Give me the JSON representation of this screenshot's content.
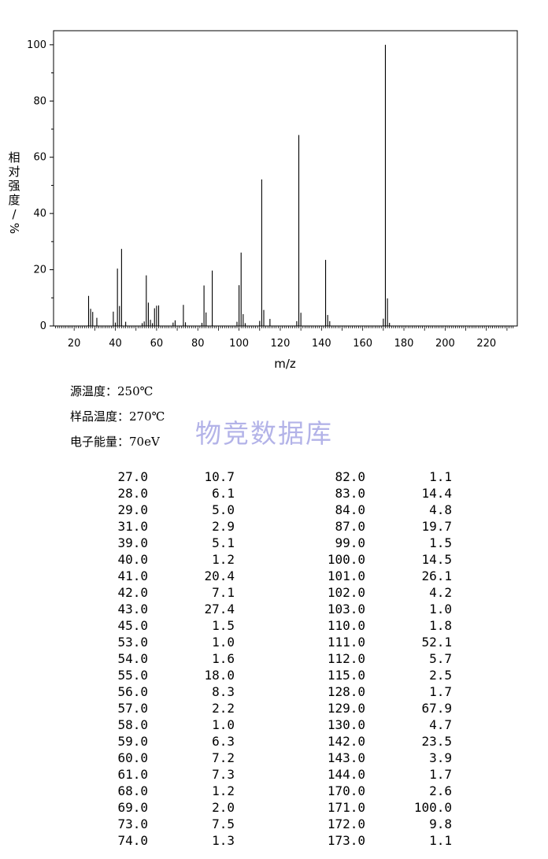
{
  "chart_data": {
    "type": "bar",
    "xlabel": "m/z",
    "ylabel": "相对强度/%",
    "xlim": [
      10,
      235
    ],
    "ylim": [
      0,
      105
    ],
    "xticks": [
      20,
      40,
      60,
      80,
      100,
      120,
      140,
      160,
      180,
      200,
      220
    ],
    "yticks": [
      0,
      20,
      40,
      60,
      80,
      100
    ],
    "grid": false,
    "peaks": [
      {
        "mz": 27.0,
        "intensity": 10.7
      },
      {
        "mz": 28.0,
        "intensity": 6.1
      },
      {
        "mz": 29.0,
        "intensity": 5.0
      },
      {
        "mz": 31.0,
        "intensity": 2.9
      },
      {
        "mz": 39.0,
        "intensity": 5.1
      },
      {
        "mz": 40.0,
        "intensity": 1.2
      },
      {
        "mz": 41.0,
        "intensity": 20.4
      },
      {
        "mz": 42.0,
        "intensity": 7.1
      },
      {
        "mz": 43.0,
        "intensity": 27.4
      },
      {
        "mz": 45.0,
        "intensity": 1.5
      },
      {
        "mz": 53.0,
        "intensity": 1.0
      },
      {
        "mz": 54.0,
        "intensity": 1.6
      },
      {
        "mz": 55.0,
        "intensity": 18.0
      },
      {
        "mz": 56.0,
        "intensity": 8.3
      },
      {
        "mz": 57.0,
        "intensity": 2.2
      },
      {
        "mz": 58.0,
        "intensity": 1.0
      },
      {
        "mz": 59.0,
        "intensity": 6.3
      },
      {
        "mz": 60.0,
        "intensity": 7.2
      },
      {
        "mz": 61.0,
        "intensity": 7.3
      },
      {
        "mz": 68.0,
        "intensity": 1.2
      },
      {
        "mz": 69.0,
        "intensity": 2.0
      },
      {
        "mz": 73.0,
        "intensity": 7.5
      },
      {
        "mz": 74.0,
        "intensity": 1.3
      },
      {
        "mz": 82.0,
        "intensity": 1.1
      },
      {
        "mz": 83.0,
        "intensity": 14.4
      },
      {
        "mz": 84.0,
        "intensity": 4.8
      },
      {
        "mz": 87.0,
        "intensity": 19.7
      },
      {
        "mz": 99.0,
        "intensity": 1.5
      },
      {
        "mz": 100.0,
        "intensity": 14.5
      },
      {
        "mz": 101.0,
        "intensity": 26.1
      },
      {
        "mz": 102.0,
        "intensity": 4.2
      },
      {
        "mz": 103.0,
        "intensity": 1.0
      },
      {
        "mz": 110.0,
        "intensity": 1.8
      },
      {
        "mz": 111.0,
        "intensity": 52.1
      },
      {
        "mz": 112.0,
        "intensity": 5.7
      },
      {
        "mz": 115.0,
        "intensity": 2.5
      },
      {
        "mz": 128.0,
        "intensity": 1.7
      },
      {
        "mz": 129.0,
        "intensity": 67.9
      },
      {
        "mz": 130.0,
        "intensity": 4.7
      },
      {
        "mz": 142.0,
        "intensity": 23.5
      },
      {
        "mz": 143.0,
        "intensity": 3.9
      },
      {
        "mz": 144.0,
        "intensity": 1.7
      },
      {
        "mz": 170.0,
        "intensity": 2.6
      },
      {
        "mz": 171.0,
        "intensity": 100.0
      },
      {
        "mz": 172.0,
        "intensity": 9.8
      },
      {
        "mz": 173.0,
        "intensity": 1.1
      }
    ]
  },
  "conditions": [
    "源温度：250℃",
    "样品温度：270℃",
    "电子能量：70eV"
  ],
  "watermark": "物竞数据库",
  "peak_table": [
    [
      "27.0",
      "10.7",
      "82.0",
      "1.1"
    ],
    [
      "28.0",
      "6.1",
      "83.0",
      "14.4"
    ],
    [
      "29.0",
      "5.0",
      "84.0",
      "4.8"
    ],
    [
      "31.0",
      "2.9",
      "87.0",
      "19.7"
    ],
    [
      "39.0",
      "5.1",
      "99.0",
      "1.5"
    ],
    [
      "40.0",
      "1.2",
      "100.0",
      "14.5"
    ],
    [
      "41.0",
      "20.4",
      "101.0",
      "26.1"
    ],
    [
      "42.0",
      "7.1",
      "102.0",
      "4.2"
    ],
    [
      "43.0",
      "27.4",
      "103.0",
      "1.0"
    ],
    [
      "45.0",
      "1.5",
      "110.0",
      "1.8"
    ],
    [
      "53.0",
      "1.0",
      "111.0",
      "52.1"
    ],
    [
      "54.0",
      "1.6",
      "112.0",
      "5.7"
    ],
    [
      "55.0",
      "18.0",
      "115.0",
      "2.5"
    ],
    [
      "56.0",
      "8.3",
      "128.0",
      "1.7"
    ],
    [
      "57.0",
      "2.2",
      "129.0",
      "67.9"
    ],
    [
      "58.0",
      "1.0",
      "130.0",
      "4.7"
    ],
    [
      "59.0",
      "6.3",
      "142.0",
      "23.5"
    ],
    [
      "60.0",
      "7.2",
      "143.0",
      "3.9"
    ],
    [
      "61.0",
      "7.3",
      "144.0",
      "1.7"
    ],
    [
      "68.0",
      "1.2",
      "170.0",
      "2.6"
    ],
    [
      "69.0",
      "2.0",
      "171.0",
      "100.0"
    ],
    [
      "73.0",
      "7.5",
      "172.0",
      "9.8"
    ],
    [
      "74.0",
      "1.3",
      "173.0",
      "1.1"
    ]
  ]
}
